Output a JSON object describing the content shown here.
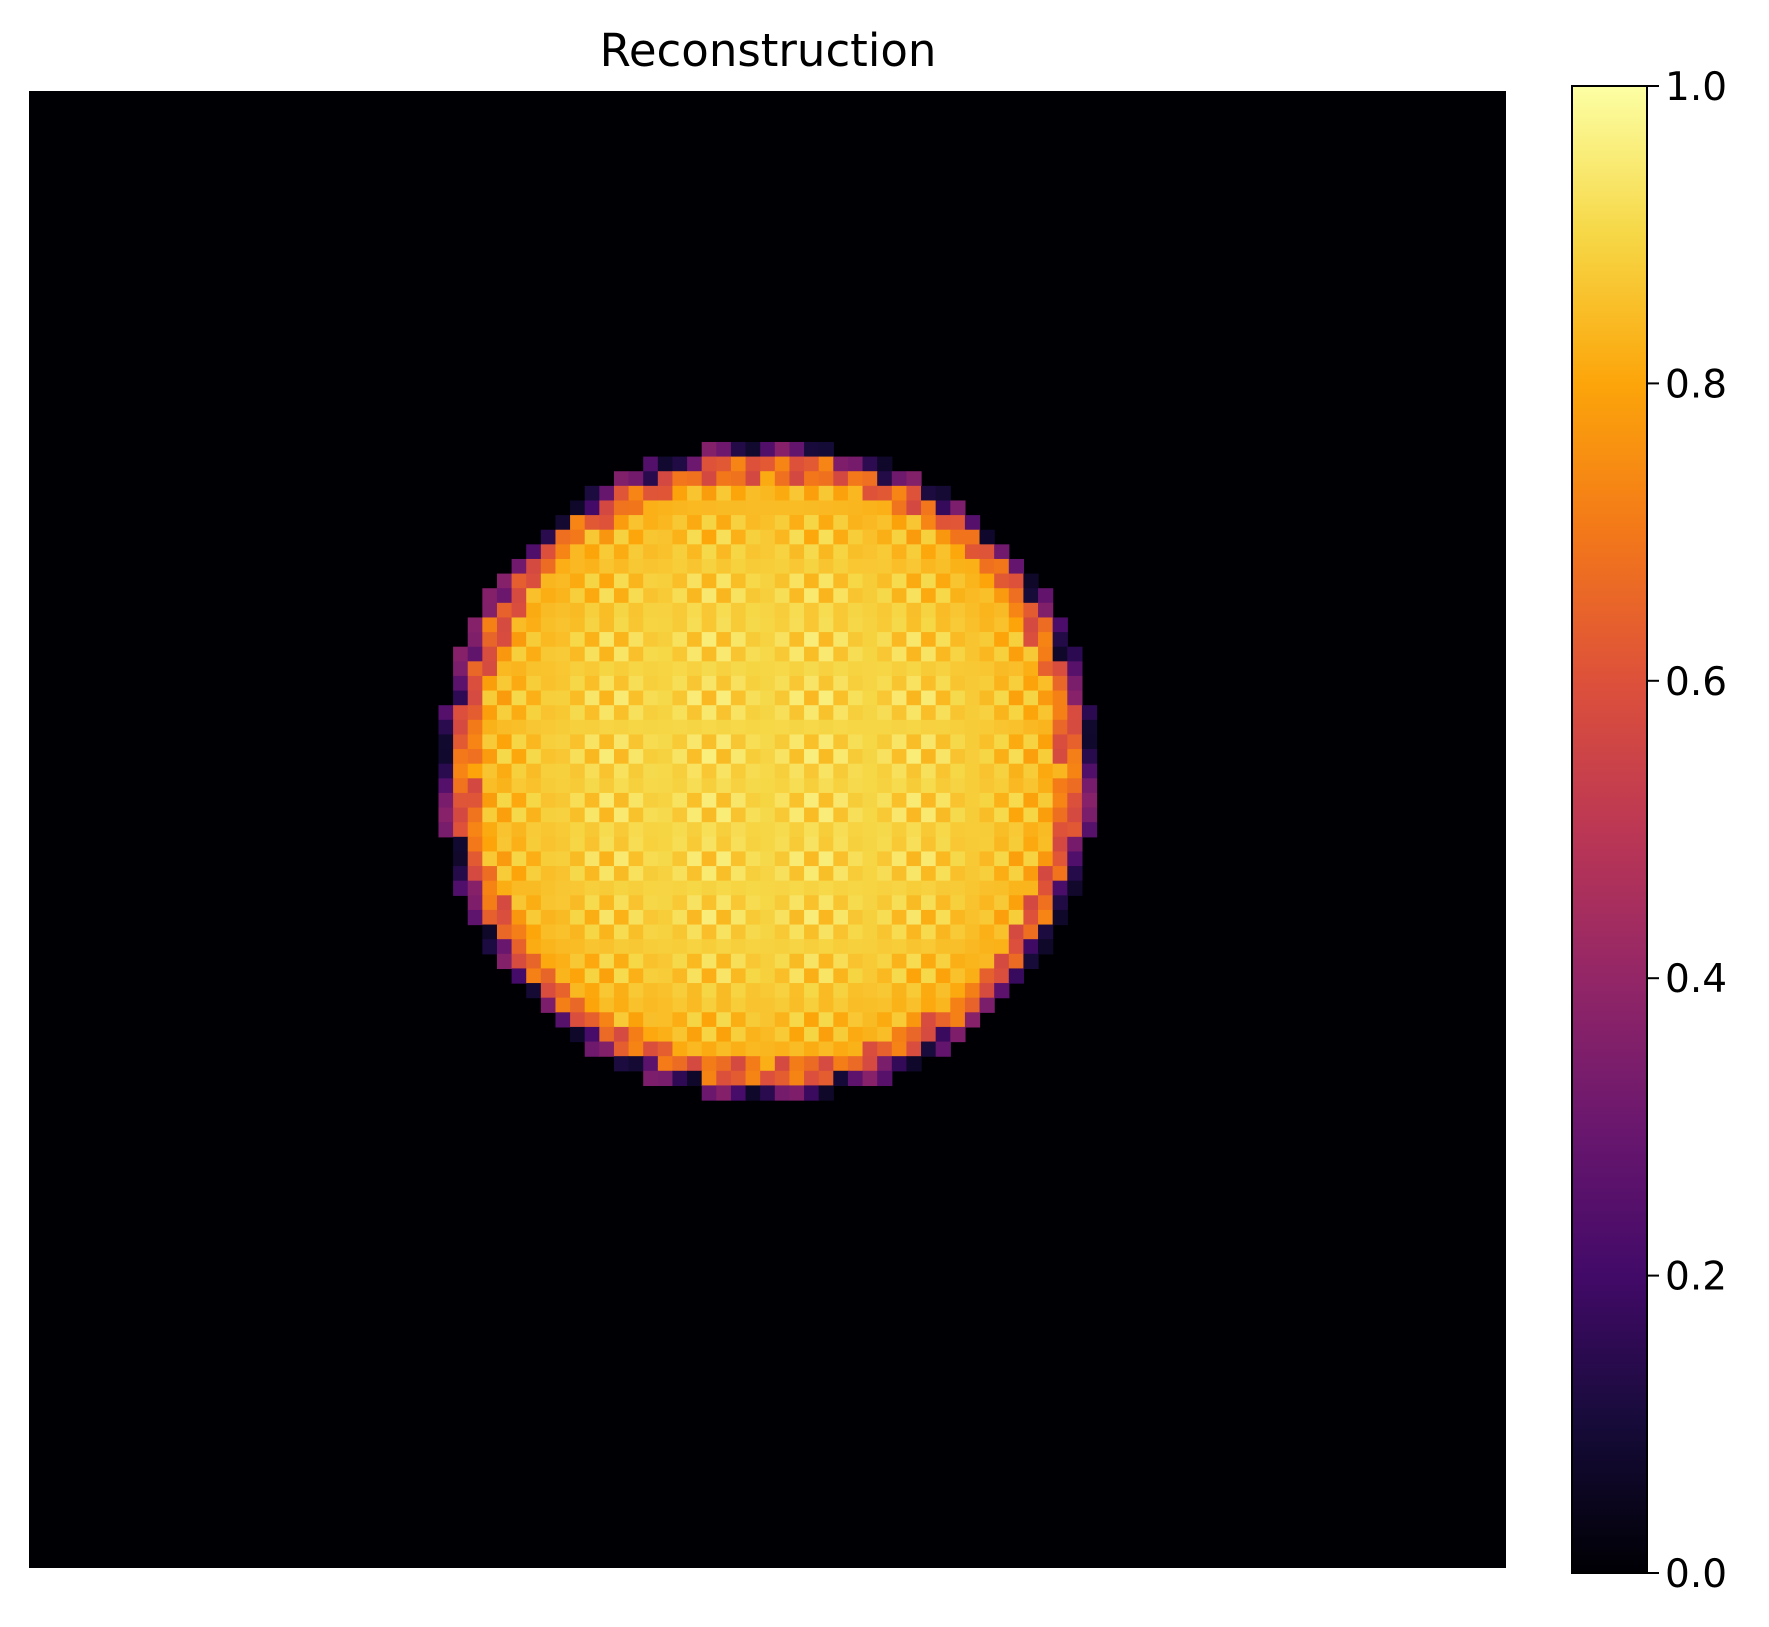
{
  "chart_data": {
    "type": "heatmap",
    "title": "Reconstruction",
    "colormap": "inferno",
    "grid": false,
    "axes_visible": false,
    "image_grid": {
      "rows": 101,
      "cols": 101
    },
    "feature": {
      "shape": "disk",
      "center_col": 50,
      "center_row": 46,
      "radius_cells": 22,
      "interior_value": 0.9,
      "rim_value": 0.4,
      "background_value": 0.0
    },
    "colorbar": {
      "location": "right",
      "min": 0.0,
      "max": 1.0,
      "ticks": [
        0.0,
        0.2,
        0.4,
        0.6,
        0.8,
        1.0
      ],
      "tick_labels": [
        "0.0",
        "0.2",
        "0.4",
        "0.6",
        "0.8",
        "1.0"
      ]
    }
  }
}
